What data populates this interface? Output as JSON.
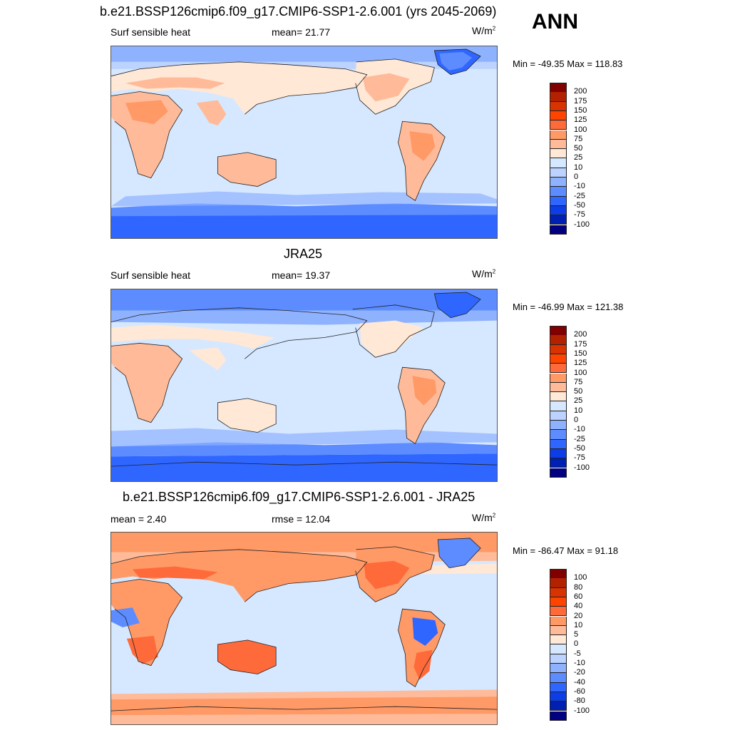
{
  "header": {
    "panel1_title": "b.e21.BSSP126cmip6.f09_g17.CMIP6-SSP1-2.6.001 (yrs 2045-2069)",
    "season": "ANN"
  },
  "panels": [
    {
      "variable": "Surf sensible heat",
      "stat_label": "mean=  21.77",
      "unit_base": "W/m",
      "unit_exp": "2",
      "minmax": "Min = -49.35 Max = 118.83",
      "title": ""
    },
    {
      "title": "JRA25",
      "variable": "Surf sensible heat",
      "stat_label": "mean=  19.37",
      "unit_base": "W/m",
      "unit_exp": "2",
      "minmax": "Min = -46.99 Max = 121.38"
    },
    {
      "title": "b.e21.BSSP126cmip6.f09_g17.CMIP6-SSP1-2.6.001 - JRA25",
      "variable": "mean =   2.40",
      "stat_label": "rmse =  12.04",
      "unit_base": "W/m",
      "unit_exp": "2",
      "minmax": "Min = -86.47 Max =  91.18"
    }
  ],
  "colorbars": {
    "abs_labels": [
      "200",
      "175",
      "150",
      "125",
      "100",
      "75",
      "50",
      "25",
      "10",
      "0",
      "-10",
      "-25",
      "-50",
      "-75",
      "-100"
    ],
    "diff_labels": [
      "100",
      "80",
      "60",
      "40",
      "20",
      "10",
      "5",
      "0",
      "-5",
      "-10",
      "-20",
      "-40",
      "-60",
      "-80",
      "-100"
    ],
    "colors": [
      "#800000",
      "#b22200",
      "#d93300",
      "#ff4400",
      "#ff6a3a",
      "#ff9966",
      "#ffbb99",
      "#ffe8d6",
      "#d6e8ff",
      "#bcd3ff",
      "#8fb2ff",
      "#5c8cff",
      "#2f66ff",
      "#0d3de6",
      "#0020b3",
      "#000080"
    ]
  },
  "map_colors": {
    "ocean": "#d6e8ff",
    "land_warm": "#ffbb99",
    "land_light": "#ffe8d6",
    "cold": "#5c8cff",
    "deep_cold": "#2f66ff",
    "diff_warm": "#ff9966",
    "diff_hot": "#ff6a3a",
    "diff_cold": "#2f66ff"
  }
}
